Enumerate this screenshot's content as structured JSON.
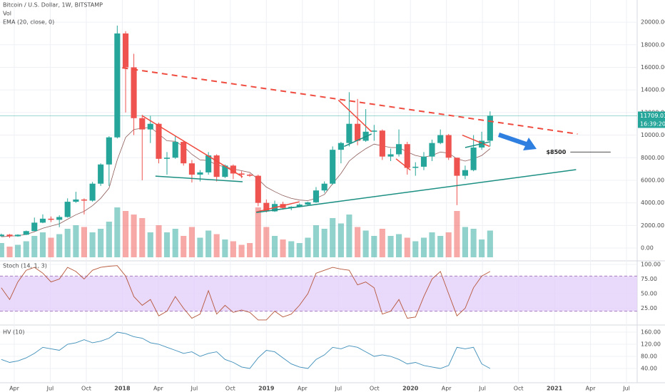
{
  "chart_data": {
    "type": "candlestick",
    "title": "Bitcoin / U.S. Dollar, 1W, BITSTAMP",
    "volume_label": "Vol",
    "ema_label": "EMA (20, close, 0)",
    "countdown": "16:39:20",
    "up_color": "#26a69a",
    "down_color": "#ef5350",
    "ema_color": "#8d5b58",
    "xlim": [
      2017.151,
      2021.574
    ],
    "xticks": [
      {
        "value": 2017.25,
        "label": "Apr"
      },
      {
        "value": 2017.5,
        "label": "Jul"
      },
      {
        "value": 2017.75,
        "label": "Oct"
      },
      2018,
      {
        "value": 2018.25,
        "label": "Apr"
      },
      {
        "value": 2018.5,
        "label": "Jul"
      },
      {
        "value": 2018.75,
        "label": "Oct"
      },
      2019,
      {
        "value": 2019.25,
        "label": "Apr"
      },
      {
        "value": 2019.5,
        "label": "Jul"
      },
      {
        "value": 2019.75,
        "label": "Oct"
      },
      2020,
      {
        "value": 2020.25,
        "label": "Apr"
      },
      {
        "value": 2020.5,
        "label": "Jul"
      },
      {
        "value": 2020.75,
        "label": "Oct"
      },
      2021,
      {
        "value": 2021.25,
        "label": "Apr"
      },
      {
        "value": 2021.5,
        "label": "Jul"
      }
    ],
    "ylim": [
      -1070,
      21960
    ],
    "yticks": [
      {
        "value": 0,
        "label": "0.00"
      },
      {
        "value": 2000,
        "label": "2000.00"
      },
      {
        "value": 4000,
        "label": "4000.00"
      },
      {
        "value": 6000,
        "label": "6000.00"
      },
      {
        "value": 8000,
        "label": "8000.00"
      },
      {
        "value": 10000,
        "label": "10000.00"
      },
      {
        "value": 12000,
        "label": "12000.00"
      },
      {
        "value": 14000,
        "label": "14000.00"
      },
      {
        "value": 16000,
        "label": "16000.00"
      },
      {
        "value": 18000,
        "label": "18000.00"
      },
      {
        "value": 20000,
        "label": "20000.00"
      }
    ],
    "x": [
      2017.16,
      2017.218,
      2017.275,
      2017.333,
      2017.39,
      2017.448,
      2017.505,
      2017.563,
      2017.62,
      2017.678,
      2017.735,
      2017.793,
      2017.85,
      2017.908,
      2017.965,
      2018.023,
      2018.08,
      2018.138,
      2018.195,
      2018.253,
      2018.31,
      2018.368,
      2018.425,
      2018.483,
      2018.54,
      2018.598,
      2018.655,
      2018.713,
      2018.77,
      2018.828,
      2018.885,
      2018.943,
      2019.0,
      2019.058,
      2019.115,
      2019.173,
      2019.23,
      2019.288,
      2019.345,
      2019.403,
      2019.46,
      2019.518,
      2019.575,
      2019.633,
      2019.69,
      2019.748,
      2019.805,
      2019.863,
      2019.92,
      2019.978,
      2020.035,
      2020.093,
      2020.15,
      2020.208,
      2020.265,
      2020.323,
      2020.38,
      2020.438,
      2020.495,
      2020.553
    ],
    "ohlc": [
      [
        1050,
        1280,
        1000,
        1190
      ],
      [
        1190,
        1250,
        900,
        1040
      ],
      [
        1040,
        1220,
        1000,
        1180
      ],
      [
        1180,
        1550,
        1150,
        1500
      ],
      [
        1500,
        2700,
        1500,
        2250
      ],
      [
        2250,
        2980,
        2200,
        2600
      ],
      [
        2600,
        2800,
        2300,
        2500
      ],
      [
        2500,
        2900,
        1850,
        2750
      ],
      [
        2750,
        4400,
        2700,
        4100
      ],
      [
        4100,
        4980,
        4000,
        4300
      ],
      [
        4300,
        4400,
        2980,
        4200
      ],
      [
        4200,
        5850,
        4100,
        5700
      ],
      [
        5700,
        7500,
        5500,
        7400
      ],
      [
        7400,
        9900,
        5500,
        9800
      ],
      [
        9800,
        19700,
        9700,
        19000
      ],
      [
        19000,
        19200,
        12000,
        16000
      ],
      [
        16000,
        17200,
        10000,
        11500
      ],
      [
        11500,
        11800,
        6000,
        10500
      ],
      [
        10500,
        11700,
        9300,
        11000
      ],
      [
        11000,
        11100,
        7500,
        7900
      ],
      [
        7900,
        8500,
        6500,
        8000
      ],
      [
        8000,
        9900,
        7900,
        9400
      ],
      [
        9400,
        9500,
        7300,
        7500
      ],
      [
        7500,
        7800,
        5800,
        6500
      ],
      [
        6500,
        6900,
        5900,
        6700
      ],
      [
        6700,
        8500,
        6500,
        8200
      ],
      [
        8200,
        8300,
        5900,
        6300
      ],
      [
        6300,
        7400,
        6200,
        7300
      ],
      [
        7300,
        7400,
        6100,
        6600
      ],
      [
        6600,
        6800,
        6200,
        6500
      ],
      [
        6500,
        6600,
        6300,
        6400
      ],
      [
        6400,
        6500,
        3700,
        4000
      ],
      [
        4000,
        4300,
        3150,
        3250
      ],
      [
        3250,
        4200,
        3200,
        3900
      ],
      [
        3900,
        4100,
        3400,
        3550
      ],
      [
        3550,
        3700,
        3350,
        3650
      ],
      [
        3650,
        3950,
        3600,
        3850
      ],
      [
        3850,
        4100,
        3800,
        4050
      ],
      [
        4050,
        5400,
        4000,
        5100
      ],
      [
        5100,
        5900,
        4900,
        5700
      ],
      [
        5700,
        9000,
        5600,
        8700
      ],
      [
        8700,
        9400,
        7500,
        9300
      ],
      [
        9300,
        13800,
        9000,
        11000
      ],
      [
        11000,
        13200,
        9100,
        9500
      ],
      [
        9500,
        12300,
        9400,
        10300
      ],
      [
        10300,
        10900,
        9500,
        10400
      ],
      [
        10400,
        10500,
        7800,
        8100
      ],
      [
        8100,
        8800,
        7700,
        8300
      ],
      [
        8300,
        10500,
        8100,
        9200
      ],
      [
        9200,
        9400,
        6500,
        7100
      ],
      [
        7100,
        7600,
        6400,
        7200
      ],
      [
        7200,
        8500,
        6900,
        8100
      ],
      [
        8100,
        9600,
        7700,
        9300
      ],
      [
        9300,
        10500,
        9200,
        10000
      ],
      [
        10000,
        10100,
        7800,
        8000
      ],
      [
        8000,
        8000,
        3800,
        6400
      ],
      [
        6400,
        7300,
        6100,
        6900
      ],
      [
        6900,
        10000,
        6800,
        8900
      ],
      [
        8900,
        10300,
        8700,
        9500
      ],
      [
        9500,
        12100,
        9000,
        11709.03
      ]
    ],
    "volume": [
      40,
      30,
      35,
      45,
      60,
      70,
      55,
      65,
      80,
      90,
      85,
      70,
      80,
      100,
      140,
      130,
      120,
      110,
      70,
      90,
      70,
      80,
      60,
      85,
      55,
      75,
      65,
      50,
      45,
      35,
      40,
      140,
      85,
      60,
      50,
      45,
      40,
      55,
      90,
      80,
      110,
      95,
      120,
      85,
      75,
      60,
      80,
      60,
      65,
      55,
      45,
      55,
      70,
      60,
      70,
      130,
      85,
      80,
      50,
      75
    ],
    "ema": [
      1000,
      1050,
      1100,
      1200,
      1450,
      1750,
      1950,
      2150,
      2550,
      2950,
      3250,
      3750,
      4400,
      5300,
      7800,
      9800,
      10500,
      10600,
      10700,
      10100,
      9500,
      9450,
      9000,
      8300,
      7800,
      7750,
      7350,
      7200,
      7000,
      6850,
      6700,
      6100,
      5400,
      5000,
      4650,
      4400,
      4250,
      4200,
      4400,
      4750,
      5700,
      6600,
      7700,
      8300,
      8800,
      9200,
      9050,
      8900,
      8900,
      8500,
      8200,
      8050,
      8200,
      8500,
      8400,
      7900,
      7700,
      7900,
      8200,
      8800
    ],
    "trendlines": [
      {
        "color": "#ef4b3f",
        "dashed": true,
        "x": [
          2018.0,
          2021.16
        ],
        "y": [
          15960,
          10100
        ]
      },
      {
        "color": "#ef4b3f",
        "dashed": false,
        "x": [
          2018.14,
          2018.835
        ],
        "y": [
          11700,
          6300
        ]
      },
      {
        "color": "#1b8f82",
        "dashed": false,
        "x": [
          2018.23,
          2018.835
        ],
        "y": [
          6370,
          5870
        ]
      },
      {
        "color": "#ef4b3f",
        "dashed": false,
        "x": [
          2018.93,
          2019.23
        ],
        "y": [
          3200,
          4100
        ]
      },
      {
        "color": "#1b8f82",
        "dashed": false,
        "x": [
          2018.93,
          2021.15
        ],
        "y": [
          3150,
          6940
        ]
      },
      {
        "color": "#ef4b3f",
        "dashed": false,
        "x": [
          2019.5,
          2019.73
        ],
        "y": [
          13100,
          10300
        ]
      },
      {
        "color": "#1b8f82",
        "dashed": false,
        "x": [
          2019.54,
          2019.73
        ],
        "y": [
          9000,
          10100
        ]
      },
      {
        "color": "#ef4b3f",
        "dashed": false,
        "x": [
          2019.9,
          2020.0
        ],
        "y": [
          7900,
          6900
        ]
      },
      {
        "color": "#ef4b3f",
        "dashed": false,
        "x": [
          2020.36,
          2020.55
        ],
        "y": [
          10000,
          9000
        ]
      },
      {
        "color": "#1b8f82",
        "dashed": false,
        "x": [
          2020.38,
          2020.55
        ],
        "y": [
          8900,
          9400
        ]
      }
    ],
    "target": {
      "label": "$8500",
      "value": 8500,
      "x": [
        2021.11,
        2021.39
      ]
    },
    "stoch": {
      "label": "Stoch (14, 1, 3)",
      "color": "#b6573a",
      "band": [
        20,
        80
      ],
      "band_color": "#e4cffa",
      "ylim": [
        -2.4,
        104.9
      ],
      "yticks": [
        {
          "value": 25,
          "label": "25.00"
        },
        {
          "value": 50,
          "label": "50.00"
        },
        {
          "value": 75,
          "label": "75.00"
        },
        {
          "value": 100,
          "label": "100.00"
        }
      ],
      "values": [
        60,
        40,
        70,
        90,
        95,
        85,
        70,
        75,
        95,
        88,
        75,
        90,
        95,
        97,
        98,
        80,
        45,
        30,
        40,
        12,
        20,
        45,
        25,
        8,
        15,
        55,
        15,
        30,
        18,
        22,
        18,
        5,
        5,
        20,
        10,
        15,
        30,
        50,
        85,
        90,
        95,
        92,
        90,
        65,
        70,
        60,
        15,
        20,
        40,
        8,
        10,
        45,
        75,
        88,
        50,
        12,
        25,
        60,
        80,
        88
      ]
    },
    "hv": {
      "label": "HV (10)",
      "color": "#3d8eb9",
      "ylim": [
        -7,
        178.8
      ],
      "yticks": [
        {
          "value": 40,
          "label": "40.00"
        },
        {
          "value": 80,
          "label": "80.00"
        },
        {
          "value": 120,
          "label": "120.00"
        },
        {
          "value": 160,
          "label": "160.00"
        }
      ],
      "values": [
        70,
        60,
        65,
        75,
        90,
        110,
        105,
        100,
        120,
        125,
        135,
        125,
        130,
        140,
        160,
        155,
        145,
        140,
        125,
        120,
        110,
        100,
        90,
        95,
        80,
        90,
        95,
        70,
        60,
        45,
        40,
        75,
        100,
        95,
        75,
        55,
        45,
        40,
        70,
        85,
        110,
        105,
        115,
        110,
        95,
        80,
        85,
        80,
        70,
        55,
        60,
        50,
        45,
        40,
        50,
        110,
        105,
        110,
        55,
        40
      ]
    }
  }
}
